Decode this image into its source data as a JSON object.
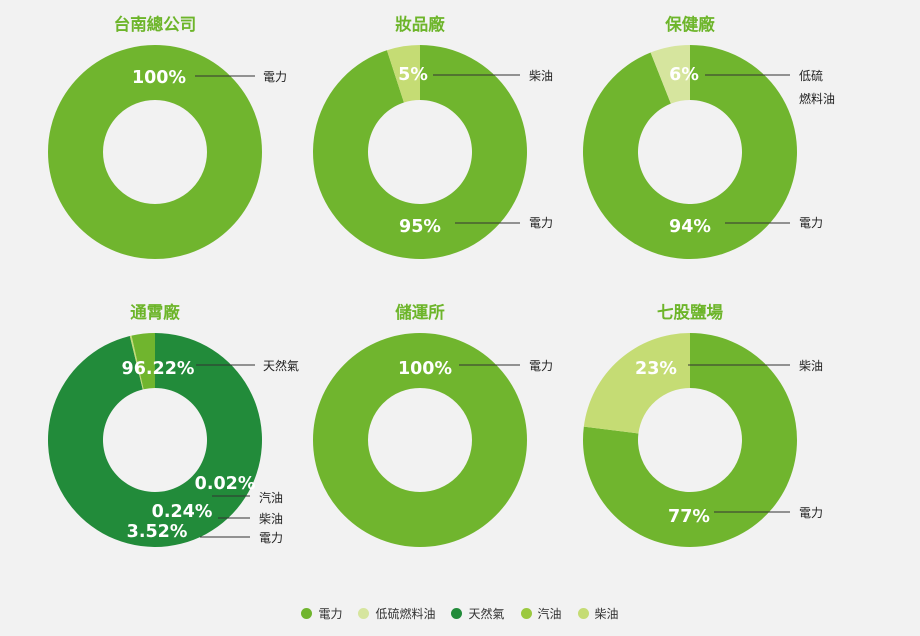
{
  "colors": {
    "title": "#6db52a",
    "text": "#222222",
    "percent_text": "#ffffff",
    "leader": "#333333",
    "background": "#f2f2f2"
  },
  "legend": [
    {
      "label": "電力",
      "color": "#70b52e"
    },
    {
      "label": "低硫燃料油",
      "color": "#d6e59e"
    },
    {
      "label": "天然氣",
      "color": "#228b3a"
    },
    {
      "label": "汽油",
      "color": "#9bc93f"
    },
    {
      "label": "柴油",
      "color": "#c5dc74"
    }
  ],
  "chart_data": [
    {
      "type": "pie",
      "title": "台南總公司",
      "slices": [
        {
          "label": "電力",
          "value": 100,
          "display": "100%",
          "color": "#70b52e"
        }
      ]
    },
    {
      "type": "pie",
      "title": "妝品廠",
      "slices": [
        {
          "label": "電力",
          "value": 95,
          "display": "95%",
          "color": "#70b52e"
        },
        {
          "label": "柴油",
          "value": 5,
          "display": "5%",
          "color": "#c5dc74"
        }
      ]
    },
    {
      "type": "pie",
      "title": "保健廠",
      "slices": [
        {
          "label": "電力",
          "value": 94,
          "display": "94%",
          "color": "#70b52e"
        },
        {
          "label": "低硫燃料油",
          "label_lines": [
            "低硫",
            "燃料油"
          ],
          "value": 6,
          "display": "6%",
          "color": "#d6e59e"
        }
      ]
    },
    {
      "type": "pie",
      "title": "通霄廠",
      "slices": [
        {
          "label": "天然氣",
          "value": 96.22,
          "display": "96.22%",
          "color": "#228b3a"
        },
        {
          "label": "汽油",
          "value": 0.02,
          "display": "0.02%",
          "color": "#9bc93f"
        },
        {
          "label": "柴油",
          "value": 0.24,
          "display": "0.24%",
          "color": "#c5dc74"
        },
        {
          "label": "電力",
          "value": 3.52,
          "display": "3.52%",
          "color": "#70b52e"
        }
      ]
    },
    {
      "type": "pie",
      "title": "儲運所",
      "slices": [
        {
          "label": "電力",
          "value": 100,
          "display": "100%",
          "color": "#70b52e"
        }
      ]
    },
    {
      "type": "pie",
      "title": "七股鹽場",
      "slices": [
        {
          "label": "電力",
          "value": 77,
          "display": "77%",
          "color": "#70b52e"
        },
        {
          "label": "柴油",
          "value": 23,
          "display": "23%",
          "color": "#c5dc74"
        }
      ]
    }
  ]
}
